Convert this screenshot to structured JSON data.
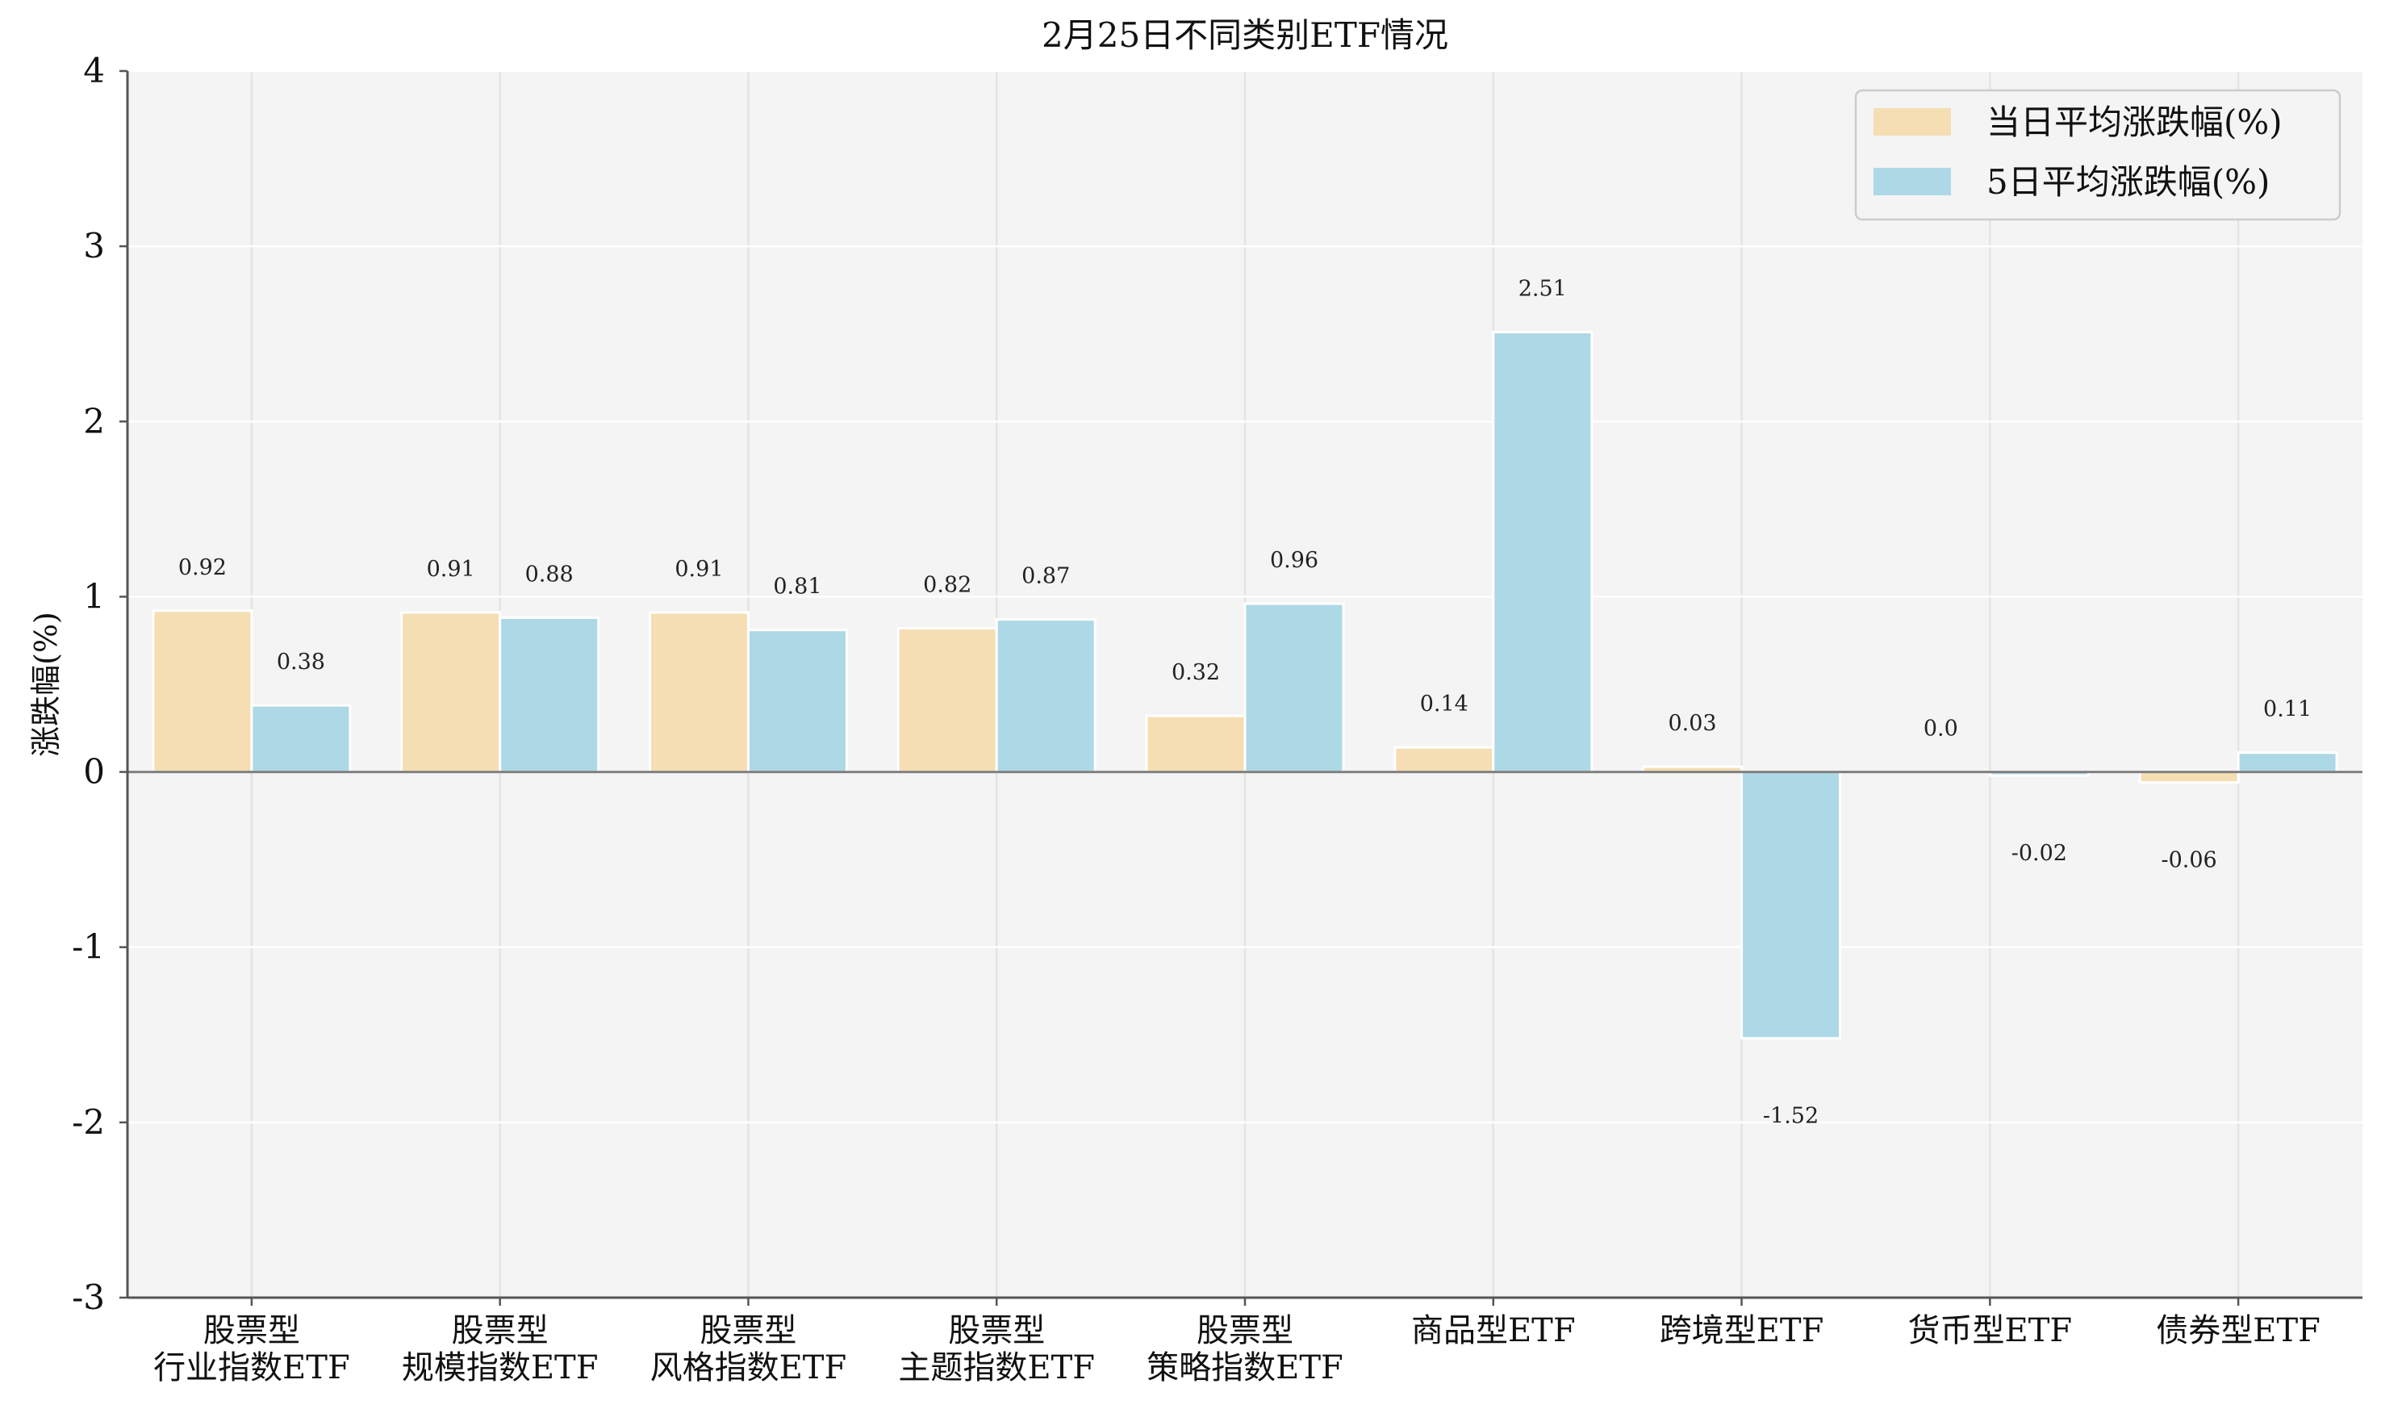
{
  "chart_data": {
    "type": "bar",
    "title": "2月25日不同类别ETF情况",
    "xlabel": "",
    "ylabel": "涨跌幅(%)",
    "ylim": [
      -3,
      4
    ],
    "yticks": [
      "4",
      "3",
      "2",
      "1",
      "0",
      "-1",
      "-2",
      "-3"
    ],
    "grid": true,
    "legend_position": "top-right",
    "categories": [
      [
        "股票型",
        "行业指数ETF"
      ],
      [
        "股票型",
        "规模指数ETF"
      ],
      [
        "股票型",
        "风格指数ETF"
      ],
      [
        "股票型",
        "主题指数ETF"
      ],
      [
        "股票型",
        "策略指数ETF"
      ],
      [
        "商品型ETF"
      ],
      [
        "跨境型ETF"
      ],
      [
        "货币型ETF"
      ],
      [
        "债券型ETF"
      ]
    ],
    "series": [
      {
        "name": "当日平均涨跌幅(%)",
        "color": "#f5deb3",
        "values": [
          0.92,
          0.91,
          0.91,
          0.82,
          0.32,
          0.14,
          0.03,
          0.0,
          -0.06
        ],
        "labels": [
          "0.92",
          "0.91",
          "0.91",
          "0.82",
          "0.32",
          "0.14",
          "0.03",
          "0.0",
          "-0.06"
        ]
      },
      {
        "name": "5日平均涨跌幅(%)",
        "color": "#add8e6",
        "values": [
          0.38,
          0.88,
          0.81,
          0.87,
          0.96,
          2.51,
          -1.52,
          -0.02,
          0.11
        ],
        "labels": [
          "0.38",
          "0.88",
          "0.81",
          "0.87",
          "0.96",
          "2.51",
          "-1.52",
          "-0.02",
          "0.11"
        ]
      }
    ]
  }
}
